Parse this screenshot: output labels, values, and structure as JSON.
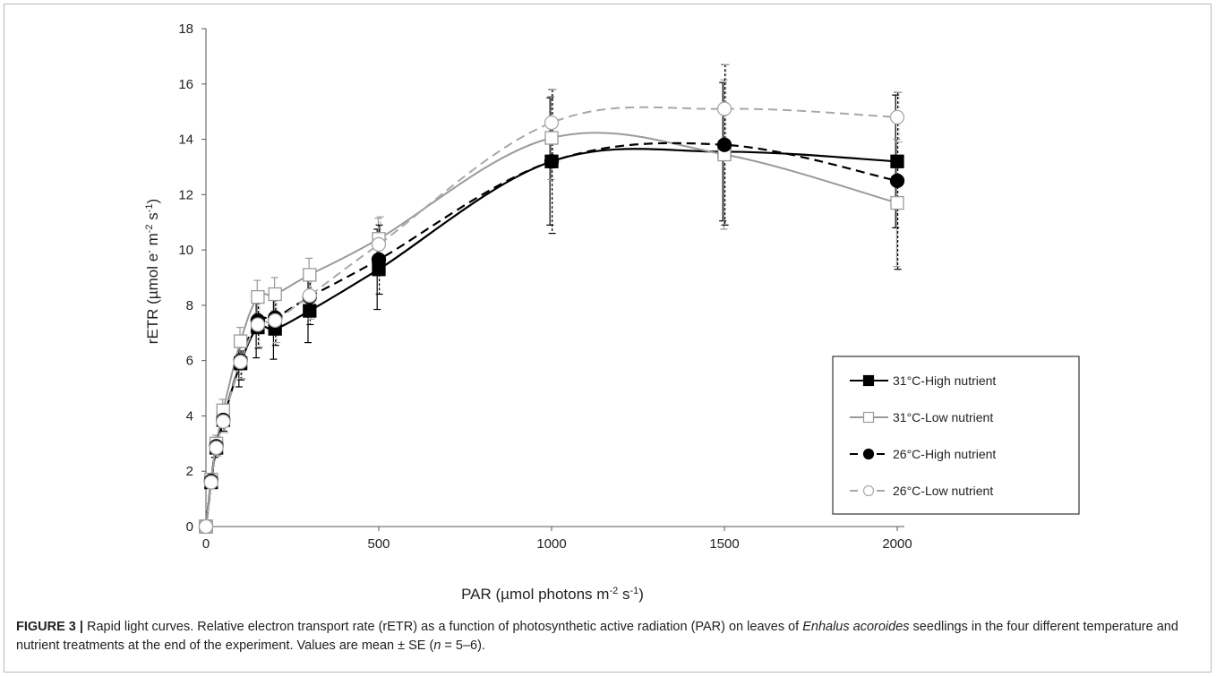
{
  "chart_data": {
    "type": "line",
    "xlabel": "PAR (µmol photons m⁻² s⁻¹)",
    "ylabel": "rETR (µmol e⁻ m⁻² s⁻¹)",
    "xlim": [
      0,
      2000
    ],
    "ylim": [
      0,
      18
    ],
    "xticks": [
      0,
      500,
      1000,
      1500,
      2000
    ],
    "yticks": [
      0,
      2,
      4,
      6,
      8,
      10,
      12,
      14,
      16,
      18
    ],
    "grid": false,
    "legend_position": "bottom-right",
    "x": [
      0,
      15,
      30,
      50,
      100,
      150,
      200,
      300,
      500,
      1000,
      1500,
      2000
    ],
    "series": [
      {
        "name": "31°C-High nutrient",
        "color": "#000000",
        "line": "solid",
        "marker": "square-filled",
        "values": [
          0,
          1.6,
          2.85,
          3.85,
          5.9,
          7.2,
          7.15,
          7.8,
          9.3,
          13.2,
          13.55,
          13.2
        ],
        "errors": [
          0,
          0.2,
          0.35,
          0.4,
          0.85,
          1.1,
          1.1,
          1.15,
          1.45,
          2.3,
          2.5,
          2.4
        ]
      },
      {
        "name": "31°C-Low nutrient",
        "color": "#9a9a9a",
        "line": "solid",
        "marker": "square-open",
        "values": [
          0,
          1.7,
          3.0,
          4.2,
          6.7,
          8.3,
          8.4,
          9.1,
          10.4,
          14.05,
          13.45,
          11.7
        ],
        "errors": [
          0,
          0.2,
          0.3,
          0.4,
          0.5,
          0.6,
          0.6,
          0.6,
          0.75,
          1.5,
          2.7,
          2.3
        ]
      },
      {
        "name": "26°C-High nutrient",
        "color": "#000000",
        "line": "dashed",
        "marker": "circle-filled",
        "values": [
          0,
          1.65,
          2.9,
          3.85,
          6.0,
          7.45,
          7.55,
          8.3,
          9.65,
          13.2,
          13.8,
          12.5
        ],
        "errors": [
          0,
          0.2,
          0.3,
          0.4,
          0.7,
          1.0,
          1.0,
          1.0,
          1.25,
          2.6,
          2.9,
          3.2
        ]
      },
      {
        "name": "26°C-Low nutrient",
        "color": "#a8a8a8",
        "line": "dashed",
        "marker": "circle-open",
        "values": [
          0,
          1.6,
          2.85,
          3.8,
          5.95,
          7.3,
          7.45,
          8.35,
          10.2,
          14.6,
          15.1,
          14.8
        ],
        "errors": [
          0,
          0.2,
          0.3,
          0.4,
          0.6,
          0.8,
          0.8,
          0.85,
          1.0,
          1.2,
          1.6,
          0.9
        ]
      }
    ]
  },
  "caption": {
    "label": "FIGURE 3 |",
    "text_before_italic": " Rapid light curves. Relative electron transport rate (rETR) as a function of photosynthetic active radiation (PAR) on leaves of ",
    "italic": "Enhalus acoroides",
    "text_after_italic": " seedlings in the four different temperature and nutrient treatments at the end of the experiment. Values are mean ± SE (",
    "n_italic": "n",
    "text_end": " = 5–6)."
  }
}
